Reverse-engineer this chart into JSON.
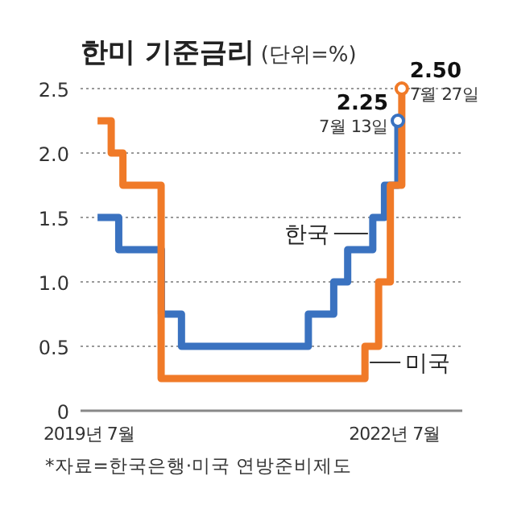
{
  "chart_data": {
    "type": "step",
    "title": "한미 기준금리",
    "subtitle": "(단위=%)",
    "x": [
      "2019-08-01",
      "2019-10-16",
      "2020-03-17",
      "2020-05-28",
      "2021-08-26",
      "2021-11-25",
      "2022-01-14",
      "2022-04-14",
      "2022-05-26",
      "2022-07-13",
      "2022-08-01"
    ],
    "series": [
      {
        "name": "한국",
        "color": "#3a72c0",
        "values": [
          1.5,
          1.25,
          0.75,
          0.5,
          0.75,
          1.0,
          1.25,
          1.5,
          1.75,
          2.25,
          2.25
        ]
      },
      {
        "name": "미국",
        "color": "#f07a28",
        "x": [
          "2019-08-01",
          "2019-09-19",
          "2019-10-31",
          "2020-03-16",
          "2022-03-17",
          "2022-05-05",
          "2022-06-16",
          "2022-07-27"
        ],
        "values": [
          2.25,
          2.0,
          1.75,
          0.25,
          0.5,
          1.0,
          1.75,
          2.5
        ]
      }
    ],
    "xlim": [
      "2019-06-01",
      "2023-03-01"
    ],
    "xticks": [
      {
        "value": "2019-07",
        "label": "2019년 7월"
      },
      {
        "value": "2022-07",
        "label": "2022년 7월"
      }
    ],
    "ylim": [
      0,
      2.5
    ],
    "yticks": [
      0,
      {
        "value": 0.5,
        "label": "0.5"
      },
      {
        "value": 1,
        "label": "1.0"
      },
      {
        "value": 1.5,
        "label": "1.5"
      },
      {
        "value": 2,
        "label": "2.0"
      },
      {
        "value": 2.5,
        "label": "2.5"
      }
    ],
    "grid": "y",
    "line_style": "solid",
    "annotations": [
      {
        "text": "2.25",
        "x": "2022-07-13",
        "y": 2.25
      },
      {
        "text": "7월 13일",
        "x": "2022-07-13",
        "y": 2.25
      },
      {
        "text": "2.50",
        "x": "2022-07-27",
        "y": 2.5
      },
      {
        "text": "7월 27일",
        "x": "2022-07-27",
        "y": 2.5
      },
      "*자료=한국은행·미국 연방준비제도"
    ]
  }
}
